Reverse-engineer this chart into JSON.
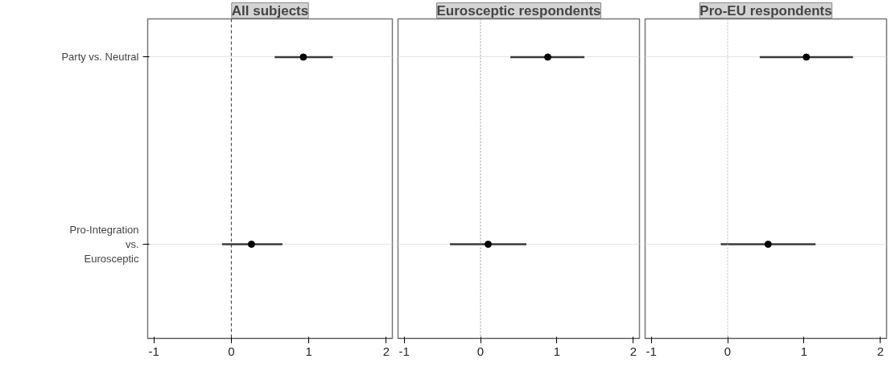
{
  "chart_data": [
    {
      "type": "scatter",
      "title": "All subjects",
      "orientation": "horizontal",
      "categories": [
        "Party vs. Neutral",
        "Pro-Integration vs. Eurosceptic"
      ],
      "series": [
        {
          "color": "#000000",
          "values": [
            0.93,
            0.26
          ],
          "errors": [
            [
              0.56,
              1.31
            ],
            [
              -0.12,
              0.66
            ]
          ]
        }
      ],
      "xlim": [
        -1.08,
        2.08
      ],
      "xticks": [
        -1,
        0,
        1,
        2
      ],
      "grid": "y",
      "marker": "circle",
      "ref_lines": [
        {
          "axis": "x",
          "value": 0,
          "color": "#333333",
          "line_style": "dashed"
        }
      ]
    },
    {
      "type": "scatter",
      "title": "Eurosceptic respondents",
      "orientation": "horizontal",
      "categories": [
        "Party vs. Neutral",
        "Pro-Integration vs. Eurosceptic"
      ],
      "series": [
        {
          "color": "#000000",
          "values": [
            0.88,
            0.1
          ],
          "errors": [
            [
              0.39,
              1.36
            ],
            [
              -0.4,
              0.6
            ]
          ]
        }
      ],
      "xlim": [
        -1.08,
        2.08
      ],
      "xticks": [
        -1,
        0,
        1,
        2
      ],
      "grid": "y",
      "marker": "circle",
      "tick_labels": "x",
      "ref_lines": [
        {
          "axis": "x",
          "value": 0,
          "color": "#999999",
          "line_style": "dotted"
        }
      ]
    },
    {
      "type": "scatter",
      "title": "Pro-EU respondents",
      "orientation": "horizontal",
      "categories": [
        "Party vs. Neutral",
        "Pro-Integration vs. Eurosceptic"
      ],
      "series": [
        {
          "color": "#000000",
          "values": [
            1.03,
            0.53
          ],
          "errors": [
            [
              0.42,
              1.64
            ],
            [
              -0.09,
              1.15
            ]
          ]
        }
      ],
      "xlim": [
        -1.08,
        2.08
      ],
      "xticks": [
        -1,
        0,
        1,
        2
      ],
      "grid": "y",
      "marker": "circle",
      "tick_labels": "x",
      "ref_lines": [
        {
          "axis": "x",
          "value": 0,
          "color": "#bbbbbb",
          "line_style": "dotted"
        }
      ]
    }
  ]
}
